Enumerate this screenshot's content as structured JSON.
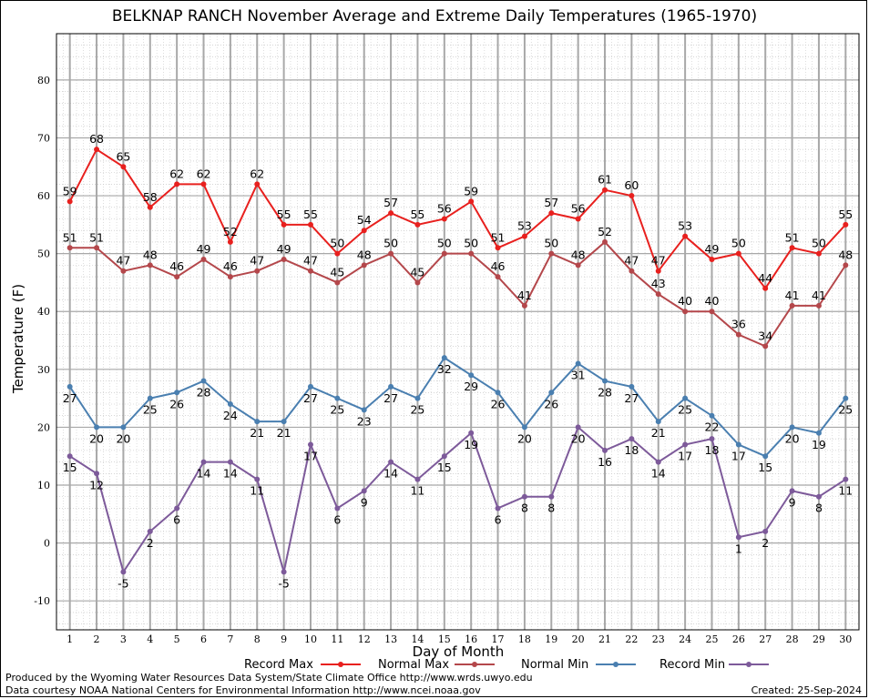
{
  "chart_data": {
    "type": "line",
    "title": "BELKNAP RANCH November Average and Extreme Daily Temperatures (1965-1970)",
    "xlabel": "Day of Month",
    "ylabel": "Temperature (F)",
    "x": [
      1,
      2,
      3,
      4,
      5,
      6,
      7,
      8,
      9,
      10,
      11,
      12,
      13,
      14,
      15,
      16,
      17,
      18,
      19,
      20,
      21,
      22,
      23,
      24,
      25,
      26,
      27,
      28,
      29,
      30
    ],
    "xlim": [
      0.5,
      30.5
    ],
    "ylim": [
      -15,
      88
    ],
    "yticks": [
      -10,
      0,
      10,
      20,
      30,
      40,
      50,
      60,
      70,
      80
    ],
    "grid": true,
    "legend_position": "bottom",
    "series": [
      {
        "name": "Record Max",
        "color": "#e8201e",
        "values": [
          59,
          68,
          65,
          58,
          62,
          62,
          52,
          62,
          55,
          55,
          50,
          54,
          57,
          55,
          56,
          59,
          51,
          53,
          57,
          56,
          61,
          60,
          47,
          53,
          49,
          50,
          44,
          51,
          50,
          55
        ]
      },
      {
        "name": "Normal Max",
        "color": "#b4474b",
        "values": [
          51,
          51,
          47,
          48,
          46,
          49,
          46,
          47,
          49,
          47,
          45,
          48,
          50,
          45,
          50,
          50,
          46,
          41,
          50,
          48,
          52,
          47,
          43,
          40,
          40,
          36,
          34,
          41,
          41,
          48
        ]
      },
      {
        "name": "Normal Min",
        "color": "#4a7fb0",
        "values": [
          27,
          20,
          20,
          25,
          26,
          28,
          24,
          21,
          21,
          27,
          25,
          23,
          27,
          25,
          32,
          29,
          26,
          20,
          26,
          31,
          28,
          27,
          21,
          25,
          22,
          17,
          15,
          20,
          19,
          25
        ]
      },
      {
        "name": "Record Min",
        "color": "#7d5a9a",
        "values": [
          15,
          12,
          -5,
          2,
          6,
          14,
          14,
          11,
          -5,
          17,
          6,
          9,
          14,
          11,
          15,
          19,
          6,
          8,
          8,
          20,
          16,
          18,
          14,
          17,
          18,
          1,
          2,
          9,
          8,
          11
        ]
      }
    ]
  },
  "credits": {
    "left_line1": "Produced by the Wyoming Water Resources Data System/State Climate Office http://www.wrds.uwyo.edu",
    "left_line2": "Data courtesy NOAA National Centers for Environmental Information http://www.ncei.noaa.gov",
    "created": "Created: 25-Sep-2024"
  }
}
